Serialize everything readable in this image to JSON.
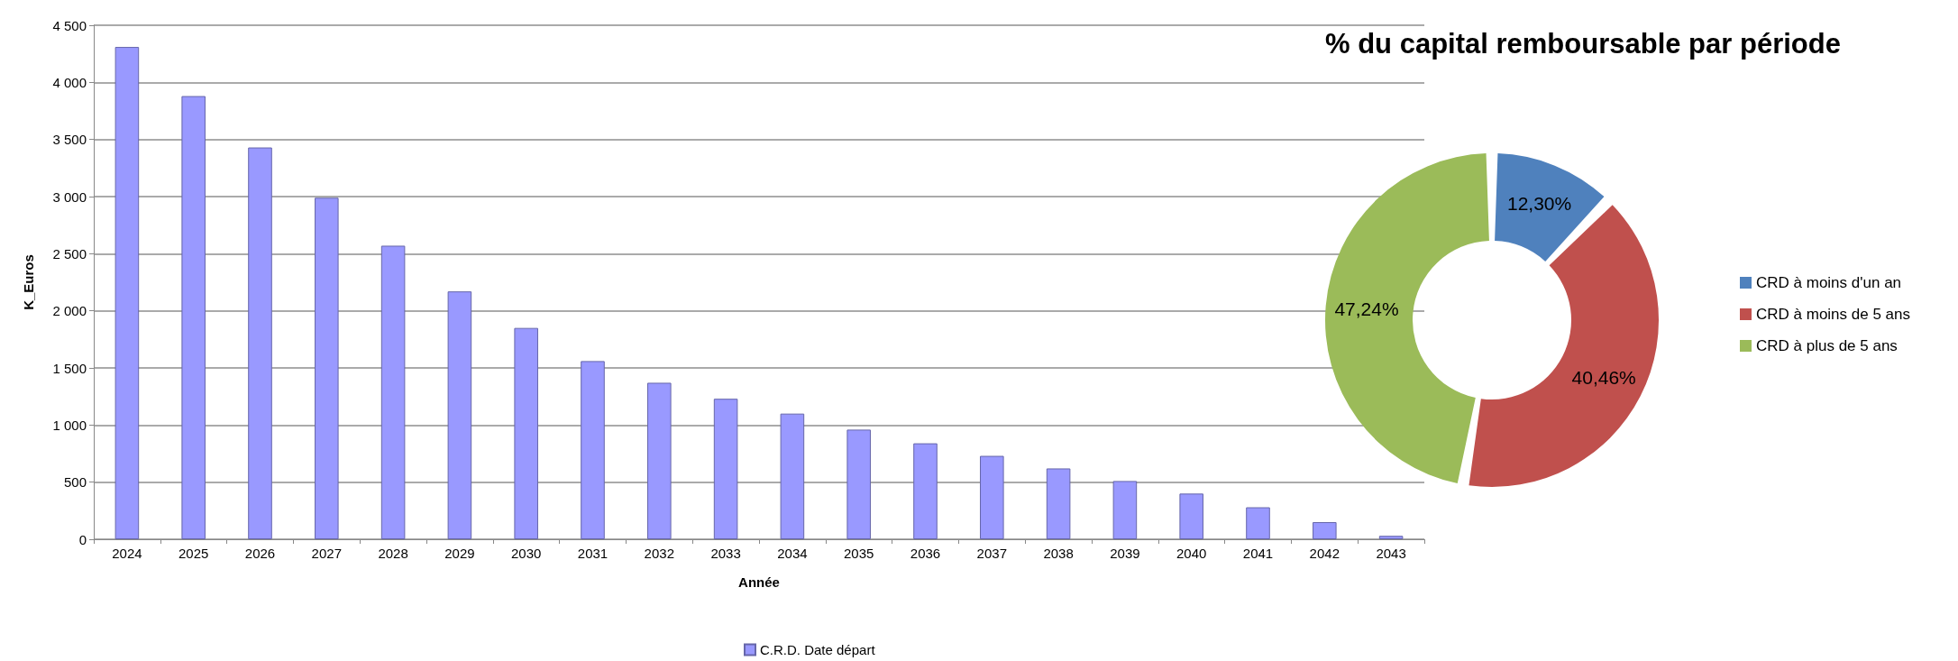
{
  "chart_data": [
    {
      "type": "bar",
      "xlabel": "Année",
      "ylabel": "K_Euros",
      "categories": [
        "2024",
        "2025",
        "2026",
        "2027",
        "2028",
        "2029",
        "2030",
        "2031",
        "2032",
        "2033",
        "2034",
        "2035",
        "2036",
        "2037",
        "2038",
        "2039",
        "2040",
        "2041",
        "2042",
        "2043"
      ],
      "series": [
        {
          "name": "C.R.D. Date départ",
          "color": "#9999ff",
          "values": [
            4310,
            3880,
            3430,
            2990,
            2570,
            2170,
            1850,
            1560,
            1370,
            1230,
            1100,
            960,
            840,
            730,
            620,
            510,
            400,
            280,
            150,
            30
          ]
        }
      ],
      "ylim": [
        0,
        4500
      ],
      "yticks": [
        0,
        500,
        {
          "value": 1000,
          "label": "1 000"
        },
        {
          "value": 1500,
          "label": "1 500"
        },
        {
          "value": 2000,
          "label": "2 000"
        },
        {
          "value": 2500,
          "label": "2 500"
        },
        {
          "value": 3000,
          "label": "3 000"
        },
        {
          "value": 3500,
          "label": "3 500"
        },
        {
          "value": 4000,
          "label": "4 000"
        },
        {
          "value": 4500,
          "label": "4 500"
        }
      ],
      "grid": "y",
      "legend": "bottom"
    },
    {
      "type": "donut",
      "title": "% du capital remboursable par période",
      "categories": [
        "CRD à moins d'un an",
        "CRD à moins de 5 ans",
        "CRD à plus de 5 ans"
      ],
      "values": [
        12.3,
        40.46,
        47.24
      ],
      "colors": [
        "#4f81bd",
        "#c0504d",
        "#9bbb59"
      ],
      "value_labels": [
        "12,30%",
        "40,46%",
        "47,24%"
      ],
      "legend": "right"
    }
  ]
}
